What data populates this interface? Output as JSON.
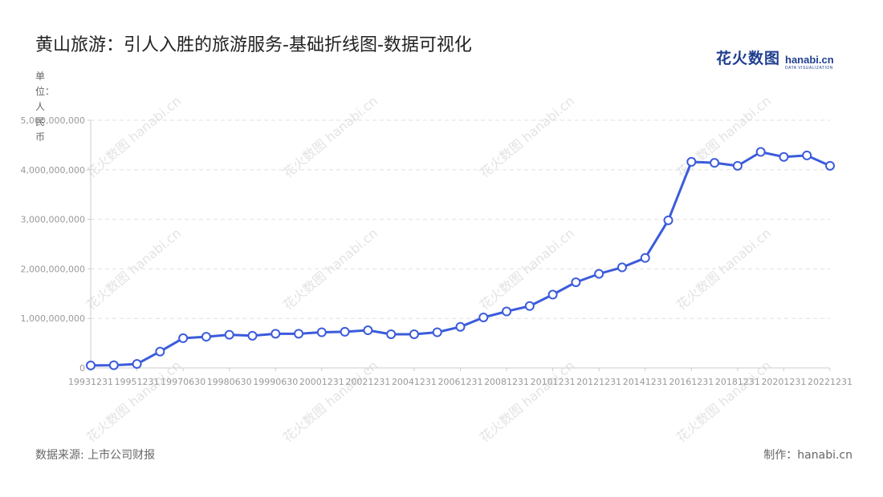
{
  "title": "黄山旅游：引人入胜的旅游服务-基础折线图-数据可视化",
  "brand": {
    "cn": "花火数图",
    "en": "hanabi.cn",
    "sub": "DATA VISUALIZATION"
  },
  "unit_label": "单位：人民币",
  "footer": {
    "source": "数据来源: 上市公司财报",
    "credit": "制作：hanabi.cn"
  },
  "colors": {
    "line": "#3b5bdb",
    "grid": "#e0e0e0",
    "axis": "#cccccc",
    "brand": "#1f3f8f"
  },
  "chart_data": {
    "type": "line",
    "x": [
      "19931231",
      "19941231",
      "19951231",
      "19961231",
      "19970630",
      "19971231",
      "19980630",
      "19981231",
      "19990630",
      "19991231",
      "20001231",
      "20011231",
      "20021231",
      "20031231",
      "20041231",
      "20051231",
      "20061231",
      "20071231",
      "20081231",
      "20091231",
      "20101231",
      "20111231",
      "20121231",
      "20131231",
      "20141231",
      "20151231",
      "20161231",
      "20171231",
      "20181231",
      "20191231",
      "20201231",
      "20211231",
      "20221231"
    ],
    "x_tick_labels": [
      "19931231",
      "19951231",
      "19970630",
      "19980630",
      "19990630",
      "20001231",
      "20021231",
      "20041231",
      "20061231",
      "20081231",
      "20101231",
      "20121231",
      "20141231",
      "20161231",
      "20181231",
      "20201231",
      "20221231"
    ],
    "series": [
      {
        "values": [
          50000000,
          55000000,
          80000000,
          330000000,
          600000000,
          630000000,
          670000000,
          650000000,
          690000000,
          690000000,
          720000000,
          730000000,
          760000000,
          680000000,
          680000000,
          720000000,
          830000000,
          1020000000,
          1140000000,
          1250000000,
          1480000000,
          1730000000,
          1900000000,
          2030000000,
          2220000000,
          2980000000,
          4160000000,
          4140000000,
          4080000000,
          4360000000,
          4260000000,
          4290000000,
          4080000000
        ]
      }
    ],
    "y_ticks": [
      0,
      1000000000,
      2000000000,
      3000000000,
      4000000000,
      5000000000
    ],
    "y_tick_labels": [
      "0",
      "1,000,000,000",
      "2,000,000,000",
      "3,000,000,000",
      "4,000,000,000",
      "5,000,000,000"
    ],
    "ylim": [
      0,
      5000000000
    ],
    "grid": true,
    "legend": "none"
  }
}
